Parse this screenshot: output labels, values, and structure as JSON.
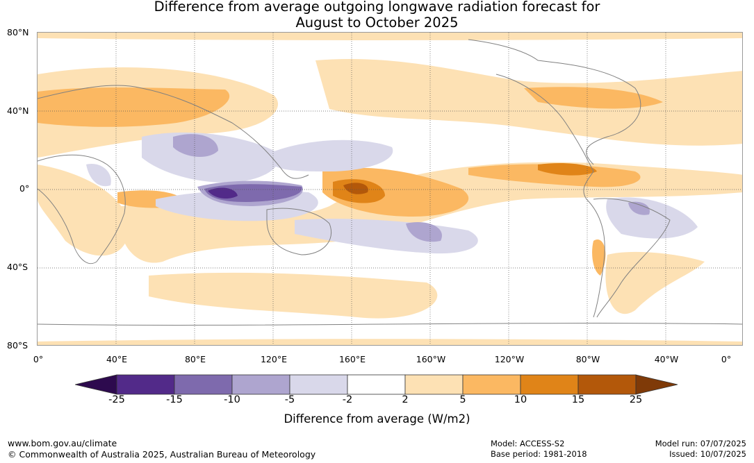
{
  "title": {
    "line1": "Difference from average outgoing longwave radiation forecast for",
    "line2": "August to October 2025"
  },
  "map": {
    "lat_labels": [
      "80°N",
      "40°N",
      "0°",
      "40°S",
      "80°S"
    ],
    "lon_labels": [
      "0°",
      "40°E",
      "80°E",
      "120°E",
      "160°E",
      "160°W",
      "120°W",
      "80°W",
      "40°W",
      "0°"
    ]
  },
  "colorbar": {
    "ticks": [
      "-25",
      "-15",
      "-10",
      "-5",
      "-2",
      "2",
      "5",
      "10",
      "15",
      "25"
    ],
    "colors": [
      "#2d0a4e",
      "#522a89",
      "#7e6aad",
      "#aea5cf",
      "#d9d8ea",
      "#ffffff",
      "#fde1b4",
      "#fbb862",
      "#e08418",
      "#b3580a",
      "#7f3a08"
    ],
    "label": "Difference from average (W/m2)"
  },
  "footer": {
    "website": "www.bom.gov.au/climate",
    "copyright": "© Commonwealth of Australia 2025, Australian Bureau of Meteorology",
    "model": "Model: ACCESS-S2",
    "base_period": "Base period: 1981-2018",
    "model_run": "Model run: 07/07/2025",
    "issued": "Issued: 10/07/2025"
  }
}
